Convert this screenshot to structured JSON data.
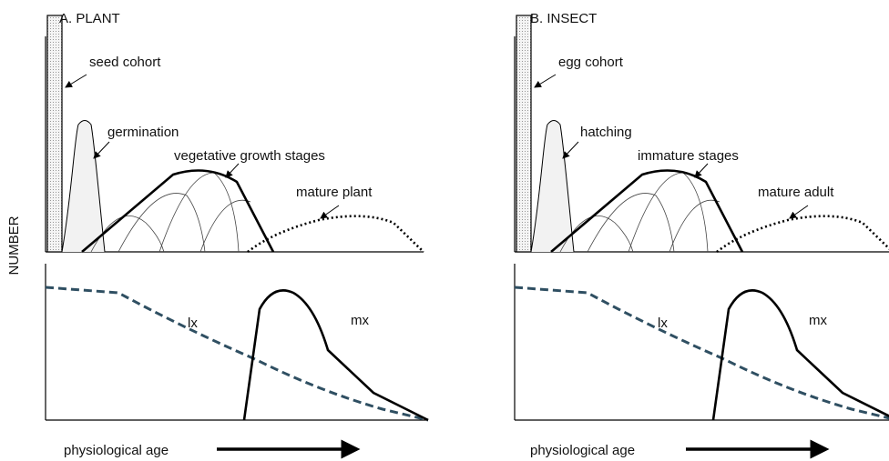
{
  "y_axis_label": "NUMBER",
  "panels": [
    {
      "title": "A. PLANT",
      "cohort": "seed cohort",
      "emergence": "germination",
      "stages": "vegetative growth stages",
      "mature": "mature plant",
      "lx": "lx",
      "mx": "mx",
      "x_axis_label": "physiological age"
    },
    {
      "title": "B. INSECT",
      "cohort": "egg cohort",
      "emergence": "hatching",
      "stages": "immature stages",
      "mature": "mature adult",
      "lx": "lx",
      "mx": "mx",
      "x_axis_label": "physiological age"
    }
  ]
}
